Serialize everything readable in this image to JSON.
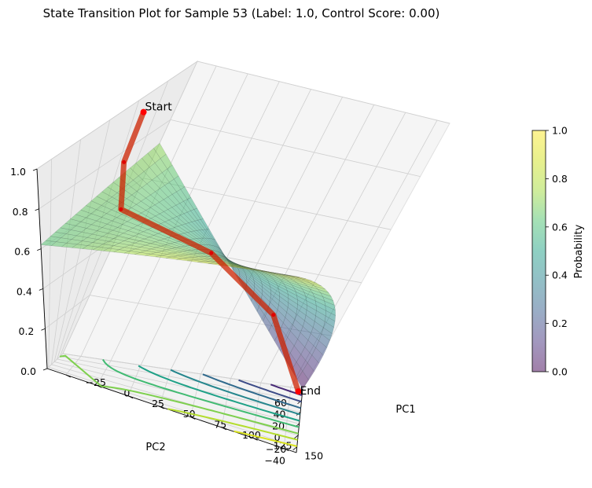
{
  "chart_data": {
    "type": "surface3d",
    "title": "State Transition Plot for Sample 53 (Label: 1.0, Control Score: 0.00)",
    "xlabel": "PC1",
    "ylabel": "PC2",
    "zlabel": "",
    "xlim": [
      -40,
      160
    ],
    "ylim": [
      -50,
      60
    ],
    "zlim": [
      0,
      1
    ],
    "x_ticks": [
      -25,
      0,
      25,
      50,
      75,
      100,
      125,
      150
    ],
    "y_ticks": [
      -40,
      -20,
      0,
      20,
      40,
      60
    ],
    "z_ticks": [
      0.0,
      0.2,
      0.4,
      0.6,
      0.8,
      1.0
    ],
    "x_tick_labels": [
      "−25",
      "0",
      "25",
      "50",
      "75",
      "100",
      "125",
      "150"
    ],
    "y_tick_labels": [
      "−40",
      "−20",
      "0",
      "20",
      "40",
      "60"
    ],
    "z_tick_labels": [
      "0.0",
      "0.2",
      "0.4",
      "0.6",
      "0.8",
      "1.0"
    ],
    "grid": true,
    "colormap": "viridis",
    "surface_alpha": 0.5,
    "surface_corners": [
      {
        "x": -40,
        "y": -50,
        "z": 0.62
      },
      {
        "x": 160,
        "y": -50,
        "z": 1.0
      },
      {
        "x": -40,
        "y": 60,
        "z": 0.72
      },
      {
        "x": 160,
        "y": 60,
        "z": 0.0
      }
    ],
    "trajectory": {
      "color": "#cc2200",
      "points": [
        {
          "x": -38,
          "y": 25,
          "z": 0.94
        },
        {
          "x": -10,
          "y": -15,
          "z": 0.94
        },
        {
          "x": 20,
          "y": -45,
          "z": 0.93
        },
        {
          "x": 60,
          "y": -3,
          "z": 0.62
        },
        {
          "x": 110,
          "y": 30,
          "z": 0.32
        },
        {
          "x": 155,
          "y": 45,
          "z": 0.02
        }
      ]
    },
    "annotations": [
      {
        "text": "Start",
        "at": "trajectory-start"
      },
      {
        "text": "End",
        "at": "trajectory-end"
      }
    ],
    "contour_levels": [
      0.1,
      0.2,
      0.3,
      0.4,
      0.5,
      0.6,
      0.7,
      0.8,
      0.9
    ],
    "colorbar": {
      "label": "Probability",
      "ticks": [
        0.0,
        0.2,
        0.4,
        0.6,
        0.8,
        1.0
      ],
      "tick_labels": [
        "0.0",
        "0.2",
        "0.4",
        "0.6",
        "0.8",
        "1.0"
      ],
      "range": [
        0,
        1
      ]
    }
  }
}
